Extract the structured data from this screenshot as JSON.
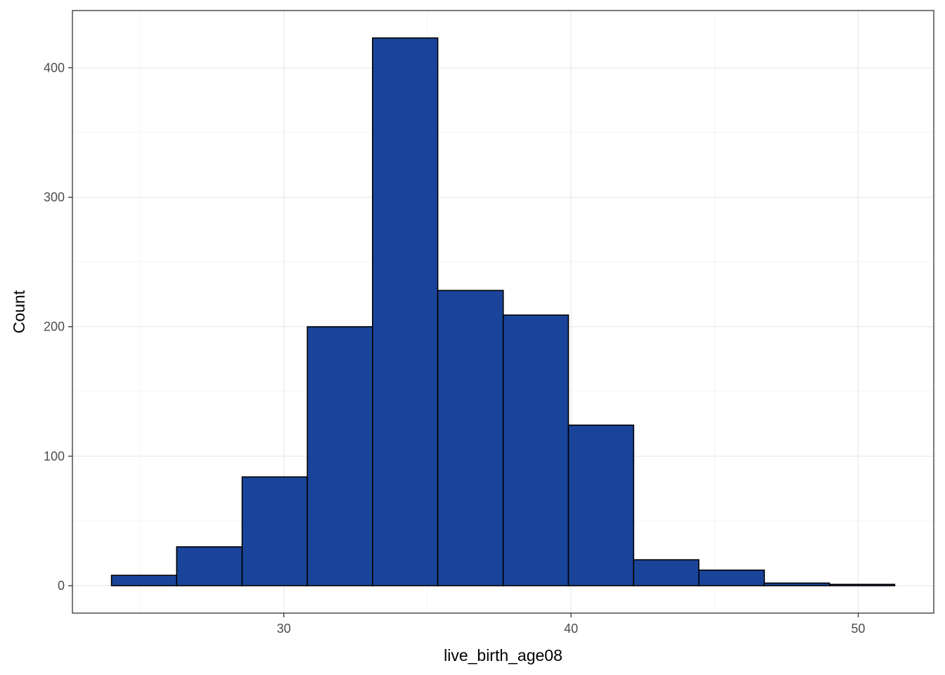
{
  "chart_data": {
    "type": "bar",
    "subtype": "histogram",
    "title": "",
    "xlabel": "live_birth_age08",
    "ylabel": "Count",
    "bins": [
      {
        "x0": 24.0,
        "x1": 26.27,
        "count": 8
      },
      {
        "x0": 26.27,
        "x1": 28.55,
        "count": 30
      },
      {
        "x0": 28.55,
        "x1": 30.82,
        "count": 84
      },
      {
        "x0": 30.82,
        "x1": 33.09,
        "count": 200
      },
      {
        "x0": 33.09,
        "x1": 35.36,
        "count": 423
      },
      {
        "x0": 35.36,
        "x1": 37.64,
        "count": 228
      },
      {
        "x0": 37.64,
        "x1": 39.91,
        "count": 209
      },
      {
        "x0": 39.91,
        "x1": 42.18,
        "count": 124
      },
      {
        "x0": 42.18,
        "x1": 44.45,
        "count": 20
      },
      {
        "x0": 44.45,
        "x1": 46.73,
        "count": 12
      },
      {
        "x0": 46.73,
        "x1": 49.0,
        "count": 2
      },
      {
        "x0": 49.0,
        "x1": 51.27,
        "count": 1
      }
    ],
    "xlim": [
      22.64,
      52.63
    ],
    "ylim": [
      -21.2,
      444.2
    ],
    "xticks": [
      30,
      40,
      50
    ],
    "xticklabels": [
      "30",
      "40",
      "50"
    ],
    "yticks": [
      0,
      100,
      200,
      300,
      400
    ],
    "yticklabels": [
      "0",
      "100",
      "200",
      "300",
      "400"
    ],
    "grid": true,
    "legend": "none",
    "bar_fill": "#1a449a",
    "bar_outline": "#000000"
  }
}
